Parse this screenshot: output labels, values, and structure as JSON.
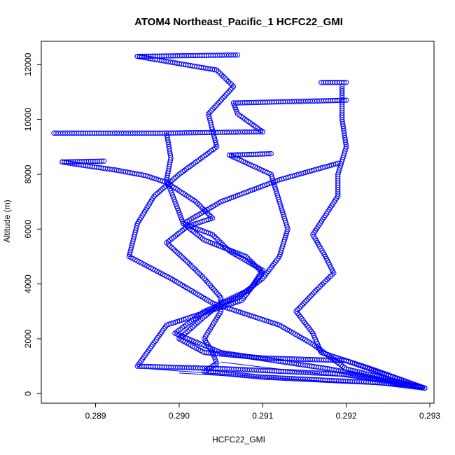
{
  "chart_data": {
    "type": "scatter",
    "title": "ATOM4 Northeast_Pacific_1 HCFC22_GMI",
    "xlabel": "HCFC22_GMI",
    "ylabel": "Altitude (m)",
    "xlim": [
      0.28835,
      0.29305
    ],
    "ylim": [
      -350,
      12850
    ],
    "x_ticks": [
      0.289,
      0.29,
      0.291,
      0.292,
      0.293
    ],
    "x_tick_labels": [
      "0.289",
      "0.290",
      "0.291",
      "0.292",
      "0.293"
    ],
    "y_ticks": [
      0,
      2000,
      4000,
      6000,
      8000,
      10000,
      12000
    ],
    "y_tick_labels": [
      "0",
      "2000",
      "4000",
      "6000",
      "8000",
      "10000",
      "12000"
    ],
    "grid": false,
    "legend": "none",
    "marker": "open-circle",
    "color": "#0000ff",
    "series": [
      {
        "values": [
          [
            0.29294,
            200
          ],
          [
            0.2924,
            400
          ],
          [
            0.2918,
            480
          ],
          [
            0.291,
            600
          ],
          [
            0.2903,
            800
          ],
          [
            0.29045,
            1100
          ],
          [
            0.2904,
            1500
          ],
          [
            0.2903,
            2000
          ],
          [
            0.2904,
            2500
          ],
          [
            0.2905,
            3000
          ],
          [
            0.2905,
            3500
          ],
          [
            0.2903,
            4200
          ],
          [
            0.2901,
            4800
          ],
          [
            0.28985,
            5500
          ],
          [
            0.2901,
            6100
          ],
          [
            0.2904,
            6400
          ],
          [
            0.2902,
            7000
          ],
          [
            0.28985,
            7700
          ],
          [
            0.2896,
            7950
          ],
          [
            0.28925,
            8150
          ],
          [
            0.2888,
            8350
          ],
          [
            0.2886,
            8450
          ]
        ]
      },
      {
        "values": [
          [
            0.2886,
            8450
          ],
          [
            0.2891,
            8480
          ]
        ]
      },
      {
        "values": [
          [
            0.29294,
            200
          ],
          [
            0.292,
            1200
          ],
          [
            0.291,
            1300
          ],
          [
            0.2903,
            1500
          ],
          [
            0.29,
            2000
          ],
          [
            0.2903,
            2800
          ],
          [
            0.2905,
            3300
          ],
          [
            0.29085,
            3800
          ],
          [
            0.291,
            4500
          ],
          [
            0.2906,
            5200
          ],
          [
            0.2904,
            5800
          ],
          [
            0.29005,
            6200
          ],
          [
            0.28995,
            7000
          ],
          [
            0.28985,
            7800
          ],
          [
            0.2899,
            8600
          ],
          [
            0.28985,
            9500
          ]
        ]
      },
      {
        "values": [
          [
            0.2885,
            9500
          ],
          [
            0.28985,
            9500
          ],
          [
            0.291,
            9550
          ]
        ]
      },
      {
        "values": [
          [
            0.291,
            9550
          ],
          [
            0.2907,
            10200
          ],
          [
            0.29065,
            10600
          ]
        ]
      },
      {
        "values": [
          [
            0.29065,
            10600
          ],
          [
            0.292,
            10700
          ]
        ]
      },
      {
        "values": [
          [
            0.29294,
            200
          ],
          [
            0.2923,
            900
          ],
          [
            0.2917,
            1500
          ],
          [
            0.2916,
            2200
          ],
          [
            0.2914,
            3000
          ],
          [
            0.29165,
            3800
          ],
          [
            0.29185,
            4400
          ],
          [
            0.29175,
            5000
          ],
          [
            0.2916,
            5800
          ],
          [
            0.29175,
            6500
          ],
          [
            0.2919,
            7200
          ],
          [
            0.2919,
            8000
          ],
          [
            0.292,
            9000
          ],
          [
            0.29195,
            10000
          ],
          [
            0.29195,
            11200
          ]
        ]
      },
      {
        "values": [
          [
            0.2917,
            11350
          ],
          [
            0.292,
            11350
          ]
        ]
      },
      {
        "values": [
          [
            0.29294,
            200
          ],
          [
            0.2918,
            900
          ],
          [
            0.2905,
            1500
          ],
          [
            0.28995,
            2200
          ],
          [
            0.2903,
            3000
          ],
          [
            0.2907,
            3500
          ],
          [
            0.291,
            4200
          ],
          [
            0.2912,
            5000
          ],
          [
            0.2913,
            6000
          ],
          [
            0.2912,
            7000
          ],
          [
            0.2911,
            8000
          ],
          [
            0.2906,
            8700
          ]
        ]
      },
      {
        "values": [
          [
            0.2906,
            8700
          ],
          [
            0.2911,
            8750
          ]
        ]
      },
      {
        "values": [
          [
            0.29294,
            200
          ],
          [
            0.292,
            900
          ],
          [
            0.2916,
            1800
          ],
          [
            0.2912,
            2500
          ],
          [
            0.2904,
            3300
          ],
          [
            0.2899,
            4200
          ],
          [
            0.2894,
            5000
          ],
          [
            0.2895,
            6200
          ],
          [
            0.2897,
            7200
          ],
          [
            0.29,
            8000
          ],
          [
            0.29045,
            9000
          ],
          [
            0.29035,
            10200
          ],
          [
            0.29065,
            11200
          ],
          [
            0.29045,
            11800
          ],
          [
            0.2895,
            12300
          ]
        ]
      },
      {
        "values": [
          [
            0.2895,
            12300
          ],
          [
            0.2907,
            12350
          ]
        ]
      },
      {
        "values": [
          [
            0.29294,
            200
          ],
          [
            0.292,
            700
          ],
          [
            0.2906,
            900
          ],
          [
            0.2895,
            1000
          ],
          [
            0.28985,
            2500
          ],
          [
            0.29075,
            3400
          ],
          [
            0.291,
            4400
          ],
          [
            0.2908,
            5000
          ],
          [
            0.2903,
            5600
          ],
          [
            0.29005,
            6200
          ],
          [
            0.2905,
            7000
          ],
          [
            0.2912,
            7800
          ],
          [
            0.2919,
            8400
          ]
        ]
      }
    ]
  }
}
